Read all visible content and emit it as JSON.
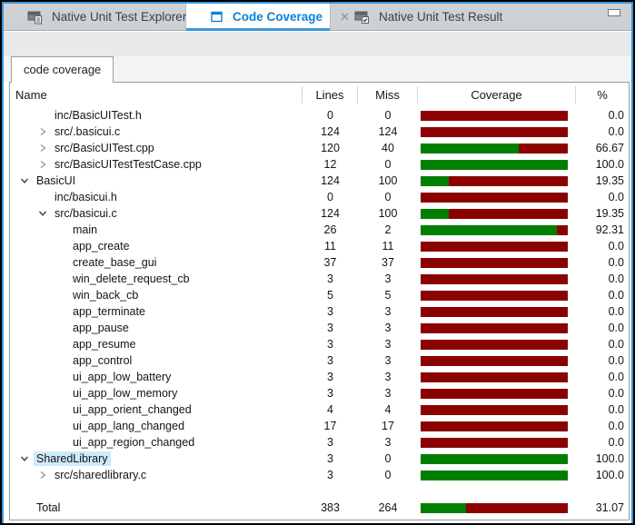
{
  "colors": {
    "accent_line": "#3b97dd",
    "active_tab_text": "#0d82d6",
    "bar_red": "#8b0000",
    "bar_green": "#008000",
    "selection_bg": "#cfe9fc"
  },
  "window": {
    "minimize_icon": "minimize-icon"
  },
  "tabs": [
    {
      "label": "Native Unit Test Explorer",
      "icon": "test-explorer",
      "active": false,
      "closable": false
    },
    {
      "label": "Code Coverage",
      "icon": "code-coverage",
      "active": true,
      "closable": true,
      "close_glyph": "✕"
    },
    {
      "label": "Native Unit Test Result",
      "icon": "test-result",
      "active": false,
      "closable": false
    }
  ],
  "view_tab": {
    "label": "code coverage"
  },
  "table": {
    "columns": [
      "Name",
      "Lines",
      "Miss",
      "Coverage",
      "%"
    ],
    "rows": [
      {
        "name": "inc/BasicUITest.h",
        "depth": 2,
        "arrow": "none",
        "lines": "0",
        "miss": "0",
        "coverage": 0,
        "percent": "0.0"
      },
      {
        "name": "src/.basicui.c",
        "depth": 2,
        "arrow": "collapsed",
        "lines": "124",
        "miss": "124",
        "coverage": 0,
        "percent": "0.0"
      },
      {
        "name": "src/BasicUITest.cpp",
        "depth": 2,
        "arrow": "collapsed",
        "lines": "120",
        "miss": "40",
        "coverage": 66.67,
        "percent": "66.67"
      },
      {
        "name": "src/BasicUITestTestCase.cpp",
        "depth": 2,
        "arrow": "collapsed",
        "lines": "12",
        "miss": "0",
        "coverage": 100,
        "percent": "100.0"
      },
      {
        "name": "BasicUI",
        "depth": 1,
        "arrow": "expanded",
        "lines": "124",
        "miss": "100",
        "coverage": 19.35,
        "percent": "19.35"
      },
      {
        "name": "inc/basicui.h",
        "depth": 2,
        "arrow": "none",
        "lines": "0",
        "miss": "0",
        "coverage": 0,
        "percent": "0.0"
      },
      {
        "name": "src/basicui.c",
        "depth": 2,
        "arrow": "expanded",
        "lines": "124",
        "miss": "100",
        "coverage": 19.35,
        "percent": "19.35"
      },
      {
        "name": "main",
        "depth": 3,
        "arrow": "none",
        "lines": "26",
        "miss": "2",
        "coverage": 92.31,
        "percent": "92.31"
      },
      {
        "name": "app_create",
        "depth": 3,
        "arrow": "none",
        "lines": "11",
        "miss": "11",
        "coverage": 0,
        "percent": "0.0"
      },
      {
        "name": "create_base_gui",
        "depth": 3,
        "arrow": "none",
        "lines": "37",
        "miss": "37",
        "coverage": 0,
        "percent": "0.0"
      },
      {
        "name": "win_delete_request_cb",
        "depth": 3,
        "arrow": "none",
        "lines": "3",
        "miss": "3",
        "coverage": 0,
        "percent": "0.0"
      },
      {
        "name": "win_back_cb",
        "depth": 3,
        "arrow": "none",
        "lines": "5",
        "miss": "5",
        "coverage": 0,
        "percent": "0.0"
      },
      {
        "name": "app_terminate",
        "depth": 3,
        "arrow": "none",
        "lines": "3",
        "miss": "3",
        "coverage": 0,
        "percent": "0.0"
      },
      {
        "name": "app_pause",
        "depth": 3,
        "arrow": "none",
        "lines": "3",
        "miss": "3",
        "coverage": 0,
        "percent": "0.0"
      },
      {
        "name": "app_resume",
        "depth": 3,
        "arrow": "none",
        "lines": "3",
        "miss": "3",
        "coverage": 0,
        "percent": "0.0"
      },
      {
        "name": "app_control",
        "depth": 3,
        "arrow": "none",
        "lines": "3",
        "miss": "3",
        "coverage": 0,
        "percent": "0.0"
      },
      {
        "name": "ui_app_low_battery",
        "depth": 3,
        "arrow": "none",
        "lines": "3",
        "miss": "3",
        "coverage": 0,
        "percent": "0.0"
      },
      {
        "name": "ui_app_low_memory",
        "depth": 3,
        "arrow": "none",
        "lines": "3",
        "miss": "3",
        "coverage": 0,
        "percent": "0.0"
      },
      {
        "name": "ui_app_orient_changed",
        "depth": 3,
        "arrow": "none",
        "lines": "4",
        "miss": "4",
        "coverage": 0,
        "percent": "0.0"
      },
      {
        "name": "ui_app_lang_changed",
        "depth": 3,
        "arrow": "none",
        "lines": "17",
        "miss": "17",
        "coverage": 0,
        "percent": "0.0"
      },
      {
        "name": "ui_app_region_changed",
        "depth": 3,
        "arrow": "none",
        "lines": "3",
        "miss": "3",
        "coverage": 0,
        "percent": "0.0"
      },
      {
        "name": "SharedLibrary",
        "depth": 1,
        "arrow": "expanded",
        "lines": "3",
        "miss": "0",
        "coverage": 100,
        "percent": "100.0",
        "selected": true
      },
      {
        "name": "src/sharedlibrary.c",
        "depth": 2,
        "arrow": "collapsed",
        "lines": "3",
        "miss": "0",
        "coverage": 100,
        "percent": "100.0"
      },
      {
        "name": "",
        "depth": 0,
        "arrow": "none",
        "lines": "",
        "miss": "",
        "coverage": null,
        "percent": "",
        "spacer": true
      },
      {
        "name": "Total",
        "depth": 1,
        "arrow": "none",
        "lines": "383",
        "miss": "264",
        "coverage": 31.07,
        "percent": "31.07"
      }
    ]
  }
}
